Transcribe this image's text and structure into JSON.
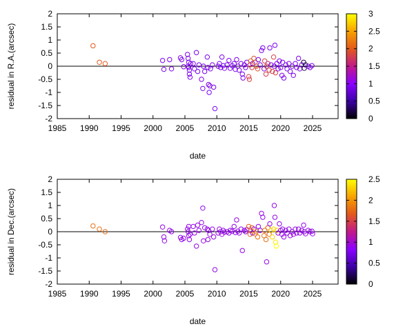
{
  "chart_data": [
    {
      "type": "scatter",
      "xlabel": "date",
      "ylabel": "residual in R.A.(arcsec)",
      "xlim": [
        1985,
        2029
      ],
      "ylim": [
        -2,
        2
      ],
      "xticks": [
        "1985",
        "1990",
        "1995",
        "2000",
        "2005",
        "2010",
        "2015",
        "2020",
        "2025"
      ],
      "yticks": [
        "-2",
        "-1.5",
        "-1",
        "-0.5",
        "0",
        "0.5",
        "1",
        "1.5",
        "2"
      ],
      "colorbar": {
        "min": 0,
        "max": 3,
        "ticks": [
          "0",
          "0.5",
          "1",
          "1.5",
          "2",
          "2.5",
          "3"
        ]
      },
      "grid": false,
      "points": [
        [
          1990.6,
          0.78,
          2.0
        ],
        [
          1991.6,
          0.15,
          2.0
        ],
        [
          1992.5,
          0.1,
          2.0
        ],
        [
          2001.5,
          0.22,
          0.9
        ],
        [
          2001.7,
          -0.12,
          0.9
        ],
        [
          2002.6,
          0.25,
          0.9
        ],
        [
          2002.9,
          -0.1,
          0.9
        ],
        [
          2004.3,
          0.32,
          0.9
        ],
        [
          2004.5,
          0.25,
          0.9
        ],
        [
          2004.8,
          -0.02,
          0.9
        ],
        [
          2005.4,
          0.45,
          0.9
        ],
        [
          2005.5,
          0.3,
          0.9
        ],
        [
          2005.6,
          0.15,
          0.9
        ],
        [
          2005.6,
          -0.05,
          0.9
        ],
        [
          2005.7,
          -0.15,
          0.9
        ],
        [
          2005.7,
          -0.3,
          0.9
        ],
        [
          2005.8,
          -0.42,
          0.9
        ],
        [
          2005.5,
          0.0,
          0.9
        ],
        [
          2005.9,
          0.1,
          0.9
        ],
        [
          2006.3,
          0.1,
          0.9
        ],
        [
          2006.5,
          -0.1,
          0.9
        ],
        [
          2006.8,
          0.52,
          0.9
        ],
        [
          2007.0,
          -0.2,
          0.9
        ],
        [
          2007.2,
          0.05,
          0.9
        ],
        [
          2007.6,
          -0.5,
          0.9
        ],
        [
          2007.8,
          -0.85,
          0.9
        ],
        [
          2007.9,
          0.0,
          0.9
        ],
        [
          2008.1,
          -0.2,
          0.9
        ],
        [
          2008.5,
          0.35,
          0.9
        ],
        [
          2008.6,
          -0.05,
          0.9
        ],
        [
          2008.7,
          -0.7,
          0.9
        ],
        [
          2008.9,
          -0.75,
          0.9
        ],
        [
          2008.8,
          -1.0,
          0.9
        ],
        [
          2009.0,
          -0.1,
          0.9
        ],
        [
          2009.3,
          0.05,
          0.9
        ],
        [
          2009.5,
          -0.8,
          0.9
        ],
        [
          2009.7,
          -1.62,
          0.9
        ],
        [
          2010.2,
          0.0,
          0.9
        ],
        [
          2010.4,
          0.1,
          0.9
        ],
        [
          2010.6,
          -0.05,
          0.9
        ],
        [
          2010.8,
          0.35,
          0.9
        ],
        [
          2011.0,
          0.02,
          0.9
        ],
        [
          2011.2,
          -0.08,
          0.9
        ],
        [
          2011.6,
          0.05,
          0.9
        ],
        [
          2011.9,
          0.22,
          0.9
        ],
        [
          2012.1,
          -0.08,
          0.9
        ],
        [
          2012.4,
          0.02,
          0.9
        ],
        [
          2012.7,
          0.1,
          0.9
        ],
        [
          2012.9,
          -0.12,
          0.9
        ],
        [
          2013.1,
          0.25,
          0.9
        ],
        [
          2013.3,
          0.0,
          0.9
        ],
        [
          2013.5,
          -0.15,
          0.9
        ],
        [
          2013.8,
          0.1,
          0.9
        ],
        [
          2014.0,
          -0.3,
          0.9
        ],
        [
          2014.1,
          -0.45,
          0.9
        ],
        [
          2014.3,
          0.05,
          0.9
        ],
        [
          2014.5,
          -0.05,
          0.9
        ],
        [
          2014.7,
          0.15,
          0.9
        ],
        [
          2015.0,
          -0.4,
          1.8
        ],
        [
          2015.1,
          -0.5,
          1.8
        ],
        [
          2015.2,
          0.05,
          1.8
        ],
        [
          2015.3,
          0.2,
          2.1
        ],
        [
          2015.5,
          -0.05,
          1.8
        ],
        [
          2015.6,
          0.1,
          0.9
        ],
        [
          2015.8,
          0.3,
          1.9
        ],
        [
          2016.0,
          0.15,
          1.9
        ],
        [
          2016.2,
          0.0,
          1.9
        ],
        [
          2016.4,
          -0.1,
          1.9
        ],
        [
          2016.5,
          0.25,
          0.9
        ],
        [
          2016.8,
          0.05,
          0.9
        ],
        [
          2017.0,
          0.6,
          0.9
        ],
        [
          2017.2,
          0.7,
          0.9
        ],
        [
          2017.4,
          -0.1,
          0.9
        ],
        [
          2017.5,
          0.2,
          1.8
        ],
        [
          2017.7,
          -0.3,
          1.8
        ],
        [
          2017.8,
          0.0,
          1.8
        ],
        [
          2018.0,
          0.1,
          1.6
        ],
        [
          2018.2,
          -0.15,
          1.8
        ],
        [
          2018.3,
          0.7,
          0.9
        ],
        [
          2018.5,
          0.05,
          0.9
        ],
        [
          2018.7,
          -0.2,
          1.8
        ],
        [
          2018.9,
          0.35,
          1.8
        ],
        [
          2019.0,
          0.0,
          0.9
        ],
        [
          2019.1,
          0.8,
          0.9
        ],
        [
          2019.2,
          -0.25,
          1.8
        ],
        [
          2019.4,
          0.1,
          0.9
        ],
        [
          2019.6,
          -0.1,
          0.9
        ],
        [
          2019.8,
          0.2,
          0.9
        ],
        [
          2020.0,
          -0.05,
          0.9
        ],
        [
          2020.2,
          -0.35,
          0.9
        ],
        [
          2020.3,
          0.15,
          0.9
        ],
        [
          2020.5,
          -0.45,
          0.9
        ],
        [
          2020.8,
          0.05,
          0.9
        ],
        [
          2021.0,
          -0.1,
          0.9
        ],
        [
          2021.3,
          0.1,
          0.9
        ],
        [
          2021.5,
          -0.2,
          0.9
        ],
        [
          2021.8,
          0.0,
          0.9
        ],
        [
          2022.0,
          -0.35,
          0.9
        ],
        [
          2022.3,
          0.1,
          0.9
        ],
        [
          2022.5,
          -0.05,
          0.9
        ],
        [
          2022.8,
          0.3,
          0.9
        ],
        [
          2023.0,
          -0.1,
          0.9
        ],
        [
          2023.3,
          0.05,
          0.9
        ],
        [
          2023.6,
          0.15,
          0.2
        ],
        [
          2023.7,
          -0.08,
          0.2
        ],
        [
          2023.9,
          0.05,
          0.2
        ],
        [
          2024.3,
          0.0,
          0.9
        ],
        [
          2024.6,
          -0.05,
          0.9
        ],
        [
          2024.9,
          0.02,
          0.9
        ]
      ]
    },
    {
      "type": "scatter",
      "xlabel": "date",
      "ylabel": "residual in Dec.(arcsec)",
      "xlim": [
        1985,
        2029
      ],
      "ylim": [
        -2,
        2
      ],
      "xticks": [
        "1985",
        "1990",
        "1995",
        "2000",
        "2005",
        "2010",
        "2015",
        "2020",
        "2025"
      ],
      "yticks": [
        "-2",
        "-1.5",
        "-1",
        "-0.5",
        "0",
        "0.5",
        "1",
        "1.5",
        "2"
      ],
      "colorbar": {
        "min": 0,
        "max": 2.5,
        "ticks": [
          "0",
          "0.5",
          "1",
          "1.5",
          "2",
          "2.5"
        ]
      },
      "grid": false,
      "points": [
        [
          1990.6,
          0.22,
          1.8
        ],
        [
          1991.6,
          0.1,
          1.8
        ],
        [
          1992.5,
          0.0,
          1.8
        ],
        [
          2001.5,
          0.18,
          0.9
        ],
        [
          2001.7,
          -0.2,
          0.9
        ],
        [
          2001.8,
          -0.35,
          0.9
        ],
        [
          2002.6,
          0.05,
          0.9
        ],
        [
          2002.9,
          0.0,
          0.9
        ],
        [
          2004.3,
          -0.22,
          0.9
        ],
        [
          2004.5,
          -0.3,
          0.9
        ],
        [
          2004.8,
          -0.25,
          0.9
        ],
        [
          2005.4,
          0.1,
          0.9
        ],
        [
          2005.5,
          0.0,
          0.9
        ],
        [
          2005.6,
          -0.15,
          0.9
        ],
        [
          2005.7,
          -0.3,
          0.9
        ],
        [
          2005.8,
          -0.1,
          0.9
        ],
        [
          2005.6,
          0.2,
          0.9
        ],
        [
          2006.3,
          0.2,
          0.9
        ],
        [
          2006.5,
          -0.05,
          0.9
        ],
        [
          2006.8,
          -0.55,
          0.9
        ],
        [
          2007.0,
          0.25,
          0.9
        ],
        [
          2007.2,
          0.05,
          0.9
        ],
        [
          2007.6,
          0.35,
          0.9
        ],
        [
          2007.8,
          0.9,
          0.9
        ],
        [
          2007.9,
          -0.35,
          0.9
        ],
        [
          2008.1,
          0.15,
          0.9
        ],
        [
          2008.5,
          0.1,
          0.9
        ],
        [
          2008.6,
          -0.3,
          0.9
        ],
        [
          2008.7,
          0.05,
          0.9
        ],
        [
          2008.9,
          -0.1,
          0.9
        ],
        [
          2009.3,
          0.1,
          0.9
        ],
        [
          2009.5,
          -0.2,
          0.9
        ],
        [
          2009.7,
          -1.45,
          0.9
        ],
        [
          2010.2,
          -0.05,
          0.9
        ],
        [
          2010.4,
          0.1,
          0.9
        ],
        [
          2010.6,
          0.0,
          0.9
        ],
        [
          2010.8,
          -0.1,
          0.9
        ],
        [
          2011.0,
          0.05,
          0.9
        ],
        [
          2011.2,
          -0.02,
          0.9
        ],
        [
          2011.6,
          0.0,
          0.9
        ],
        [
          2011.9,
          -0.05,
          0.9
        ],
        [
          2012.1,
          0.05,
          0.9
        ],
        [
          2012.4,
          0.02,
          0.9
        ],
        [
          2012.7,
          0.2,
          0.9
        ],
        [
          2012.9,
          -0.03,
          0.9
        ],
        [
          2013.1,
          0.45,
          0.9
        ],
        [
          2013.3,
          0.02,
          0.9
        ],
        [
          2013.5,
          -0.05,
          0.9
        ],
        [
          2013.8,
          0.1,
          0.9
        ],
        [
          2014.0,
          -0.72,
          0.9
        ],
        [
          2014.3,
          0.05,
          0.9
        ],
        [
          2014.5,
          0.0,
          0.9
        ],
        [
          2014.7,
          0.08,
          0.9
        ],
        [
          2015.0,
          0.2,
          1.7
        ],
        [
          2015.2,
          -0.1,
          1.7
        ],
        [
          2015.3,
          0.05,
          1.7
        ],
        [
          2015.5,
          0.15,
          1.7
        ],
        [
          2015.6,
          -0.05,
          0.9
        ],
        [
          2015.8,
          0.1,
          0.9
        ],
        [
          2016.0,
          -0.08,
          1.8
        ],
        [
          2016.2,
          0.0,
          1.8
        ],
        [
          2016.4,
          -0.2,
          1.8
        ],
        [
          2016.5,
          0.2,
          0.9
        ],
        [
          2016.8,
          0.05,
          0.9
        ],
        [
          2017.0,
          0.7,
          0.9
        ],
        [
          2017.2,
          0.55,
          0.9
        ],
        [
          2017.4,
          -0.15,
          1.8
        ],
        [
          2017.5,
          0.05,
          1.8
        ],
        [
          2017.7,
          -0.3,
          1.8
        ],
        [
          2017.8,
          -1.15,
          0.9
        ],
        [
          2018.0,
          0.15,
          1.7
        ],
        [
          2018.2,
          -0.1,
          1.7
        ],
        [
          2018.3,
          0.3,
          0.9
        ],
        [
          2018.5,
          0.05,
          2.3
        ],
        [
          2018.7,
          -0.2,
          2.3
        ],
        [
          2018.9,
          0.1,
          2.3
        ],
        [
          2019.0,
          1.0,
          0.9
        ],
        [
          2019.1,
          0.55,
          0.9
        ],
        [
          2019.2,
          -0.4,
          2.4
        ],
        [
          2019.3,
          -0.55,
          2.5
        ],
        [
          2019.4,
          0.05,
          2.3
        ],
        [
          2019.6,
          -0.05,
          0.9
        ],
        [
          2019.8,
          0.3,
          0.9
        ],
        [
          2020.0,
          0.05,
          0.9
        ],
        [
          2020.2,
          -0.1,
          0.9
        ],
        [
          2020.3,
          0.1,
          0.9
        ],
        [
          2020.5,
          -0.2,
          0.9
        ],
        [
          2020.8,
          0.05,
          0.9
        ],
        [
          2021.0,
          -0.05,
          0.9
        ],
        [
          2021.3,
          0.1,
          0.9
        ],
        [
          2021.5,
          -0.15,
          0.9
        ],
        [
          2021.8,
          0.0,
          0.9
        ],
        [
          2022.0,
          -0.1,
          0.9
        ],
        [
          2022.3,
          0.1,
          0.9
        ],
        [
          2022.5,
          -0.05,
          0.9
        ],
        [
          2022.8,
          0.1,
          0.9
        ],
        [
          2023.0,
          -0.05,
          0.9
        ],
        [
          2023.3,
          0.05,
          0.9
        ],
        [
          2023.6,
          0.25,
          0.9
        ],
        [
          2023.7,
          0.0,
          0.9
        ],
        [
          2023.9,
          -0.08,
          0.9
        ],
        [
          2024.3,
          0.05,
          0.9
        ],
        [
          2024.6,
          0.0,
          0.9
        ],
        [
          2024.9,
          0.02,
          0.9
        ],
        [
          2025.0,
          -0.08,
          0.9
        ]
      ]
    }
  ]
}
